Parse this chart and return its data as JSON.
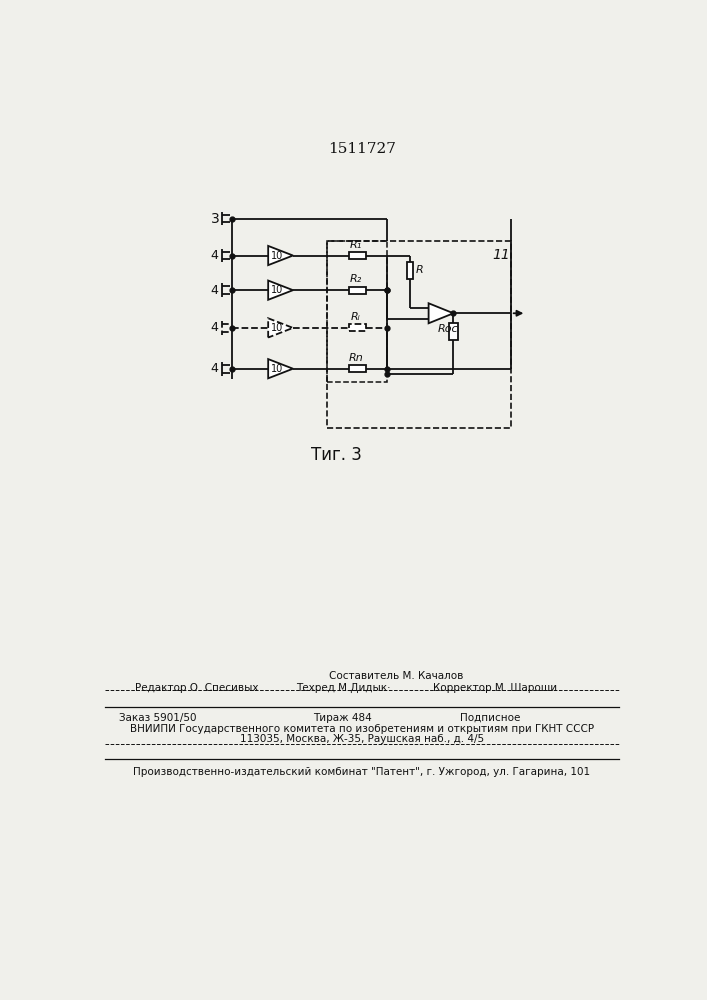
{
  "bg_color": "#f0f0eb",
  "lc": "#111111",
  "patent_number": "1511727",
  "fig_caption": "Τиг. 3",
  "label_3": "3",
  "label_4": "4",
  "label_10": "10",
  "label_11": "11",
  "label_R1": "R₁",
  "label_R2": "R₂",
  "label_Ri": "Rᵢ",
  "label_Rn": "Rn",
  "label_R": "R",
  "label_Roc": "Roc",
  "footer_editor": "Редактор О. Спесивых",
  "footer_comp": "Составитель М. Качалов",
  "footer_tech": "Техред М.Дидык·",
  "footer_corr": "Корректор М. Шароши",
  "footer_order": "Заказ 5901/50",
  "footer_circ": "Тираж 484",
  "footer_sub": "Подписное",
  "footer_org": "ВНИИПИ Государственного комитета по изобретениям и открытиям при ГКНТ СССР",
  "footer_addr": "113035, Москва, Ж-35, Раушская наб., д. 4/5",
  "footer_prod": "Производственно-издательский комбинат \"Патент\", г. Ужгород, ул. Гагарина, 101",
  "row_dashed": [
    false,
    false,
    true,
    false
  ]
}
